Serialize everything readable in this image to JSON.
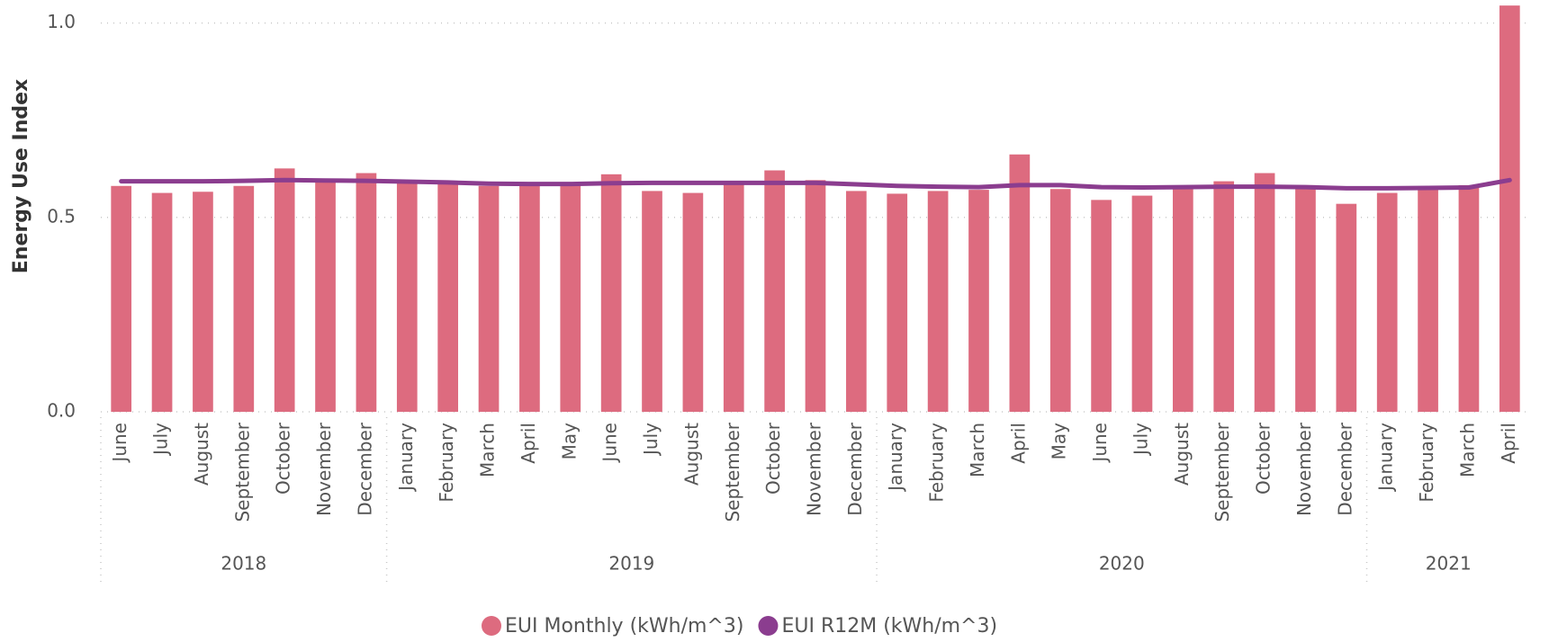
{
  "chart_data": {
    "type": "bar_line",
    "y_axis_label": "Energy Use Index",
    "categories": [
      "June",
      "July",
      "August",
      "September",
      "October",
      "November",
      "December",
      "January",
      "February",
      "March",
      "April",
      "May",
      "June",
      "July",
      "August",
      "September",
      "October",
      "November",
      "December",
      "January",
      "February",
      "March",
      "April",
      "May",
      "June",
      "July",
      "August",
      "September",
      "October",
      "November",
      "December",
      "January",
      "February",
      "March",
      "April"
    ],
    "year_groups": [
      {
        "label": "2018",
        "count": 7
      },
      {
        "label": "2019",
        "count": 12
      },
      {
        "label": "2020",
        "count": 12
      },
      {
        "label": "2021",
        "count": 4
      }
    ],
    "series": [
      {
        "name": "EUI Monthly (kWh/m^3)",
        "color": "#dd6b7f",
        "kind": "bar",
        "values": [
          0.581,
          0.563,
          0.566,
          0.581,
          0.626,
          0.593,
          0.614,
          0.593,
          0.591,
          0.581,
          0.586,
          0.588,
          0.611,
          0.568,
          0.563,
          0.588,
          0.621,
          0.596,
          0.568,
          0.561,
          0.568,
          0.571,
          0.662,
          0.573,
          0.545,
          0.556,
          0.581,
          0.593,
          0.614,
          0.583,
          0.535,
          0.563,
          0.578,
          0.583,
          1.045
        ]
      },
      {
        "name": "EUI R12M (kWh/m^3)",
        "color": "#8b3d8f",
        "kind": "line",
        "values": [
          0.593,
          0.593,
          0.593,
          0.594,
          0.596,
          0.595,
          0.594,
          0.592,
          0.59,
          0.587,
          0.586,
          0.586,
          0.588,
          0.589,
          0.589,
          0.589,
          0.589,
          0.589,
          0.585,
          0.581,
          0.579,
          0.578,
          0.583,
          0.583,
          0.578,
          0.577,
          0.578,
          0.579,
          0.579,
          0.578,
          0.575,
          0.575,
          0.576,
          0.577,
          0.596
        ]
      }
    ],
    "ylim": [
      0,
      1.05
    ],
    "yticks": [
      {
        "value": 0,
        "label": "0.0"
      },
      0.5,
      {
        "value": 1,
        "label": "1.0"
      }
    ],
    "grid": true
  }
}
